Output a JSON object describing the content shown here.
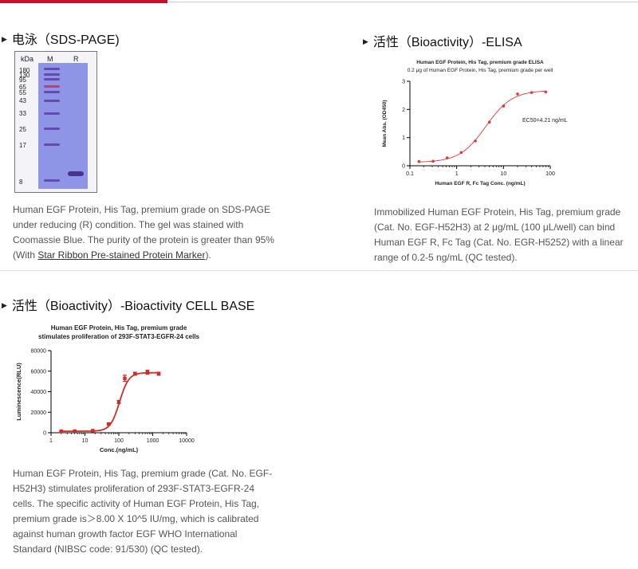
{
  "sections": {
    "sds": {
      "title": "电泳（SDS-PAGE)",
      "gel": {
        "kda_label": "kDa",
        "lane_m": "M",
        "lane_r": "R",
        "markers": [
          "180",
          "130",
          "95",
          "65",
          "55",
          "43",
          "33",
          "25",
          "17",
          "8"
        ]
      },
      "desc_part1": "Human EGF Protein, His Tag, premium grade on SDS-PAGE under reducing (R) condition. The gel was stained with Coomassie Blue. The purity of the protein is greater than 95% (With ",
      "desc_link": "Star Ribbon Pre-stained Protein Marker",
      "desc_part2": ")."
    },
    "elisa": {
      "title": "活性（Bioactivity）-ELISA",
      "desc": "Immobilized Human EGF Protein, His Tag, premium grade (Cat. No. EGF-H52H3) at 2 μg/mL (100 μL/well) can bind Human EGF R, Fc Tag (Cat. No. EGR-H5252) with a linear range of 0.2-5 ng/mL (QC tested)."
    },
    "cell": {
      "title": "活性（Bioactivity）-Bioactivity CELL BASE",
      "desc": "Human EGF Protein, His Tag, premium grade (Cat. No. EGF-H52H3) stimulates proliferation of 293F-STAT3-EGFR-24 cells. The specific activity of Human EGF Protein, His Tag, premium grade is＞8.00 X 10^5 IU/mg, which is calibrated against human growth factor EGF WHO International Standard (NIBSC code: 91/530) (QC tested)."
    }
  },
  "chart_data": [
    {
      "type": "scatter",
      "title": "Human EGF Protein, His Tag, premium grade ELISA",
      "subtitle": "0.2 μg of Human EGF Protein, His Tag, premium grade per well",
      "xlabel": "Human EGF R, Fc Tag Conc. (ng/mL)",
      "ylabel": "Mean Abs. (OD450)",
      "xscale": "log",
      "xlim": [
        0.1,
        100
      ],
      "ylim": [
        0,
        3
      ],
      "xticks": [
        0.1,
        1,
        10,
        100
      ],
      "xtick_labels": [
        "0.1",
        "1",
        "10",
        "100"
      ],
      "yticks": [
        0,
        1,
        2,
        3
      ],
      "ytick_labels": [
        "0",
        "1",
        "2",
        "3"
      ],
      "annotation": "EC50=4.21 ng/mL",
      "x": [
        0.156,
        0.3125,
        0.625,
        1.25,
        2.5,
        5,
        10,
        20,
        40,
        80
      ],
      "y": [
        0.15,
        0.16,
        0.28,
        0.47,
        0.88,
        1.55,
        2.12,
        2.55,
        2.6,
        2.62
      ],
      "curve": {
        "bottom": 0.12,
        "top": 2.68,
        "ec50": 4.21,
        "hill": 1.55
      },
      "color": "#e0393b"
    },
    {
      "type": "scatter",
      "title_line1": "Human EGF Protein, His Tag, premium grade",
      "title_line2": "stimulates proliferation of 293F-STAT3-EGFR-24 cells",
      "xlabel": "Conc.(ng/mL)",
      "ylabel": "Luminescence(RLU)",
      "xscale": "log",
      "xlim": [
        1,
        10000
      ],
      "ylim": [
        0,
        80000
      ],
      "xticks": [
        1,
        10,
        100,
        1000,
        10000
      ],
      "xtick_labels": [
        "1",
        "10",
        "100",
        "1000",
        "10000"
      ],
      "yticks": [
        0,
        20000,
        40000,
        60000,
        80000
      ],
      "ytick_labels": [
        "0",
        "20000",
        "40000",
        "60000",
        "80000"
      ],
      "x": [
        2,
        5,
        17,
        50,
        100,
        150,
        300,
        700,
        1500
      ],
      "y": [
        1500,
        1600,
        2000,
        8500,
        30000,
        53000,
        57500,
        59000,
        57500
      ],
      "err": [
        300,
        300,
        400,
        800,
        1500,
        3000,
        1500,
        2000,
        1500
      ],
      "curve": {
        "bottom": 1500,
        "top": 58500,
        "ec50": 105,
        "hill": 3.2
      },
      "color": "#c9302c"
    }
  ]
}
